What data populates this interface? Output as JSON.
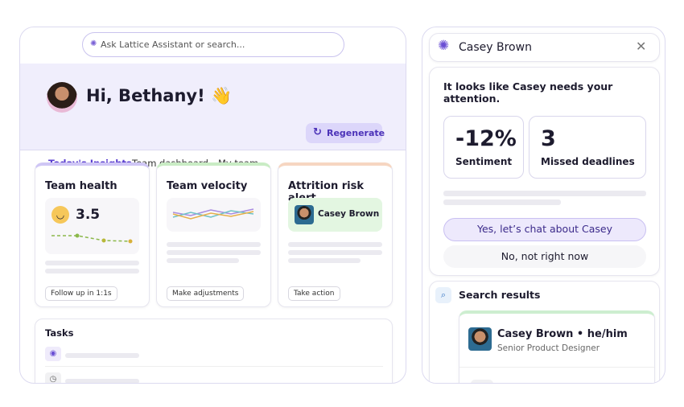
{
  "search": {
    "placeholder": "Ask Lattice Assistant or search..."
  },
  "greeting": "Hi, Bethany! 👋",
  "tabs": [
    "Today's Insights",
    "Team dashboard",
    "My team"
  ],
  "regenerate": "Regenerate",
  "cards": [
    {
      "title": "Team health",
      "score": "3.5",
      "action": "Follow up in 1:1s"
    },
    {
      "title": "Team velocity",
      "action": "Make adjustments"
    },
    {
      "title": "Attrition risk alert",
      "person": "Casey Brown",
      "action": "Take action"
    }
  ],
  "tasks": {
    "title": "Tasks"
  },
  "assistant": {
    "name": "Casey Brown",
    "message": "It looks like Casey needs your attention.",
    "stats": [
      {
        "value": "-12%",
        "label": "Sentiment"
      },
      {
        "value": "3",
        "label": "Missed deadlines"
      }
    ],
    "primary": "Yes, let’s chat about Casey",
    "secondary": "No, not right now"
  },
  "search_results": {
    "title": "Search results",
    "person": {
      "name": "Casey Brown • he/him",
      "role": "Senior Product Designer"
    }
  }
}
